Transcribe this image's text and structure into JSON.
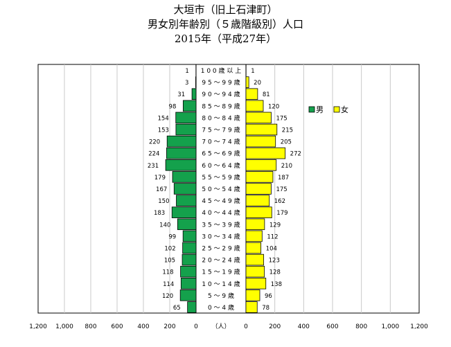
{
  "title": [
    "大垣市（旧上石津町）",
    "男女別年齢別（５歳階級別）人口",
    "2015年（平成27年）"
  ],
  "unit_label": "（人）",
  "colors": {
    "male": "#14a14c",
    "female": "#ffff00",
    "grid": "#c8c8c8",
    "outline": "#000000"
  },
  "chart_data": {
    "type": "bar",
    "orientation": "horizontal-pyramid",
    "categories": [
      "100歳以上",
      "95～99歳",
      "90～94歳",
      "85～89歳",
      "80～84歳",
      "75～79歳",
      "70～74歳",
      "65～69歳",
      "60～64歳",
      "55～59歳",
      "50～54歳",
      "45～49歳",
      "40～44歳",
      "35～39歳",
      "30～34歳",
      "25～29歳",
      "20～24歳",
      "15～19歳",
      "10～14歳",
      "5～ 9歳",
      "0～ 4歳"
    ],
    "category_labels": [
      "1 0 0 歳 以 上",
      "9 5 ～ 9 9 歳",
      "9 0 ～ 9 4 歳",
      "8 5 ～ 8 9 歳",
      "8 0 ～ 8 4 歳",
      "7 5 ～ 7 9 歳",
      "7 0 ～ 7 4 歳",
      "6 5 ～ 6 9 歳",
      "6 0 ～ 6 4 歳",
      "5 5 ～ 5 9 歳",
      "5 0 ～ 5 4 歳",
      "4 5 ～ 4 9 歳",
      "4 0 ～ 4 4 歳",
      "3 5 ～ 3 9 歳",
      "3 0 ～ 3 4 歳",
      "2 5 ～ 2 9 歳",
      "2 0 ～ 2 4 歳",
      "1 5 ～ 1 9 歳",
      "1 0 ～ 1 4 歳",
      "5 ～ 9 歳",
      "0 ～ 4 歳"
    ],
    "series": [
      {
        "name": "男",
        "values": [
          1,
          3,
          31,
          98,
          154,
          153,
          220,
          224,
          231,
          179,
          167,
          150,
          183,
          140,
          99,
          102,
          105,
          118,
          114,
          120,
          65
        ]
      },
      {
        "name": "女",
        "values": [
          1,
          20,
          81,
          120,
          175,
          215,
          205,
          272,
          210,
          187,
          175,
          162,
          179,
          129,
          112,
          104,
          123,
          128,
          138,
          96,
          78
        ]
      }
    ],
    "xlim": [
      0,
      1200
    ],
    "x_ticks": [
      1200,
      1000,
      800,
      600,
      400,
      200,
      0
    ],
    "x_tick_labels_left": [
      "1,200",
      "1,000",
      "800",
      "600",
      "400",
      "200",
      "0"
    ],
    "x_tick_labels_right": [
      "0",
      "200",
      "400",
      "600",
      "800",
      "1,000",
      "1,200"
    ],
    "grid": true,
    "legend": "top-right"
  }
}
